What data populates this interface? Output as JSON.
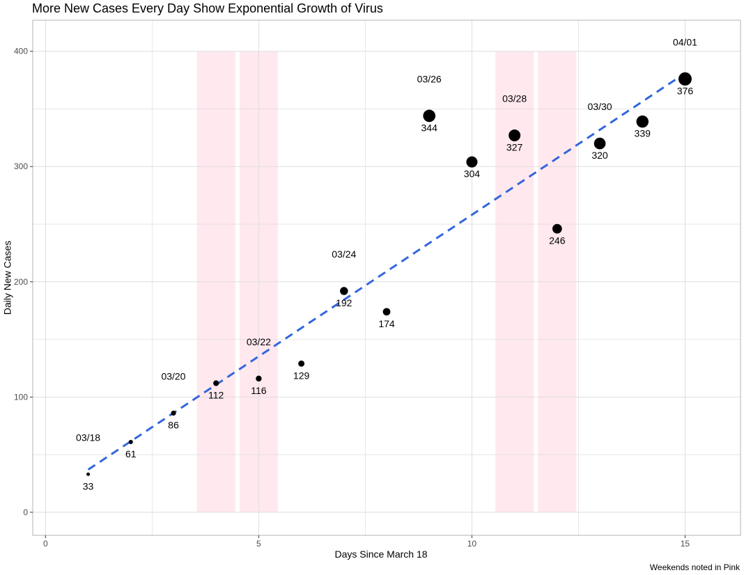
{
  "chart_data": {
    "type": "scatter",
    "title": "More New Cases Every Day Show Exponential Growth of Virus",
    "xlabel": "Days Since March 18",
    "ylabel": "Daily New Cases",
    "caption": "Weekends noted in Pink",
    "xlim": [
      -0.3,
      16.3
    ],
    "ylim": [
      -20,
      427
    ],
    "x_ticks": [
      0,
      5,
      10,
      15
    ],
    "y_ticks": [
      0,
      100,
      200,
      300,
      400
    ],
    "grid": true,
    "points": [
      {
        "x": 1,
        "y": 33,
        "label": "33",
        "date": "03/18"
      },
      {
        "x": 2,
        "y": 61,
        "label": "61"
      },
      {
        "x": 3,
        "y": 86,
        "label": "86"
      },
      {
        "x": 4,
        "y": 112,
        "label": "112"
      },
      {
        "x": 5,
        "y": 116,
        "label": "116"
      },
      {
        "x": 6,
        "y": 129,
        "label": "129"
      },
      {
        "x": 7,
        "y": 192,
        "label": "192"
      },
      {
        "x": 8,
        "y": 174,
        "label": "174"
      },
      {
        "x": 9,
        "y": 344,
        "label": "344"
      },
      {
        "x": 10,
        "y": 304,
        "label": "304"
      },
      {
        "x": 11,
        "y": 327,
        "label": "327"
      },
      {
        "x": 12,
        "y": 246,
        "label": "246"
      },
      {
        "x": 13,
        "y": 320,
        "label": "320"
      },
      {
        "x": 14,
        "y": 339,
        "label": "339"
      },
      {
        "x": 15,
        "y": 376,
        "label": "376"
      }
    ],
    "date_labels": [
      {
        "x": 1,
        "y": 62,
        "text": "03/18"
      },
      {
        "x": 3,
        "y": 115,
        "text": "03/20"
      },
      {
        "x": 5,
        "y": 145,
        "text": "03/22"
      },
      {
        "x": 7,
        "y": 221,
        "text": "03/24"
      },
      {
        "x": 9,
        "y": 373,
        "text": "03/26"
      },
      {
        "x": 11,
        "y": 356,
        "text": "03/28"
      },
      {
        "x": 13,
        "y": 349,
        "text": "03/30"
      },
      {
        "x": 15,
        "y": 405,
        "text": "04/01"
      }
    ],
    "weekend_bands": [
      {
        "from": 3.55,
        "to": 4.45
      },
      {
        "from": 4.55,
        "to": 5.45
      },
      {
        "from": 10.55,
        "to": 11.45
      },
      {
        "from": 11.55,
        "to": 12.45
      }
    ],
    "trend_line": {
      "x": [
        1,
        15
      ],
      "y": [
        37,
        381
      ],
      "style": "dashed"
    },
    "colors": {
      "points": "#000000",
      "trend": "#3366dd",
      "weekend": "#ffe8ee",
      "grid": "#dedede",
      "panel_border": "#b3b3b3"
    }
  }
}
